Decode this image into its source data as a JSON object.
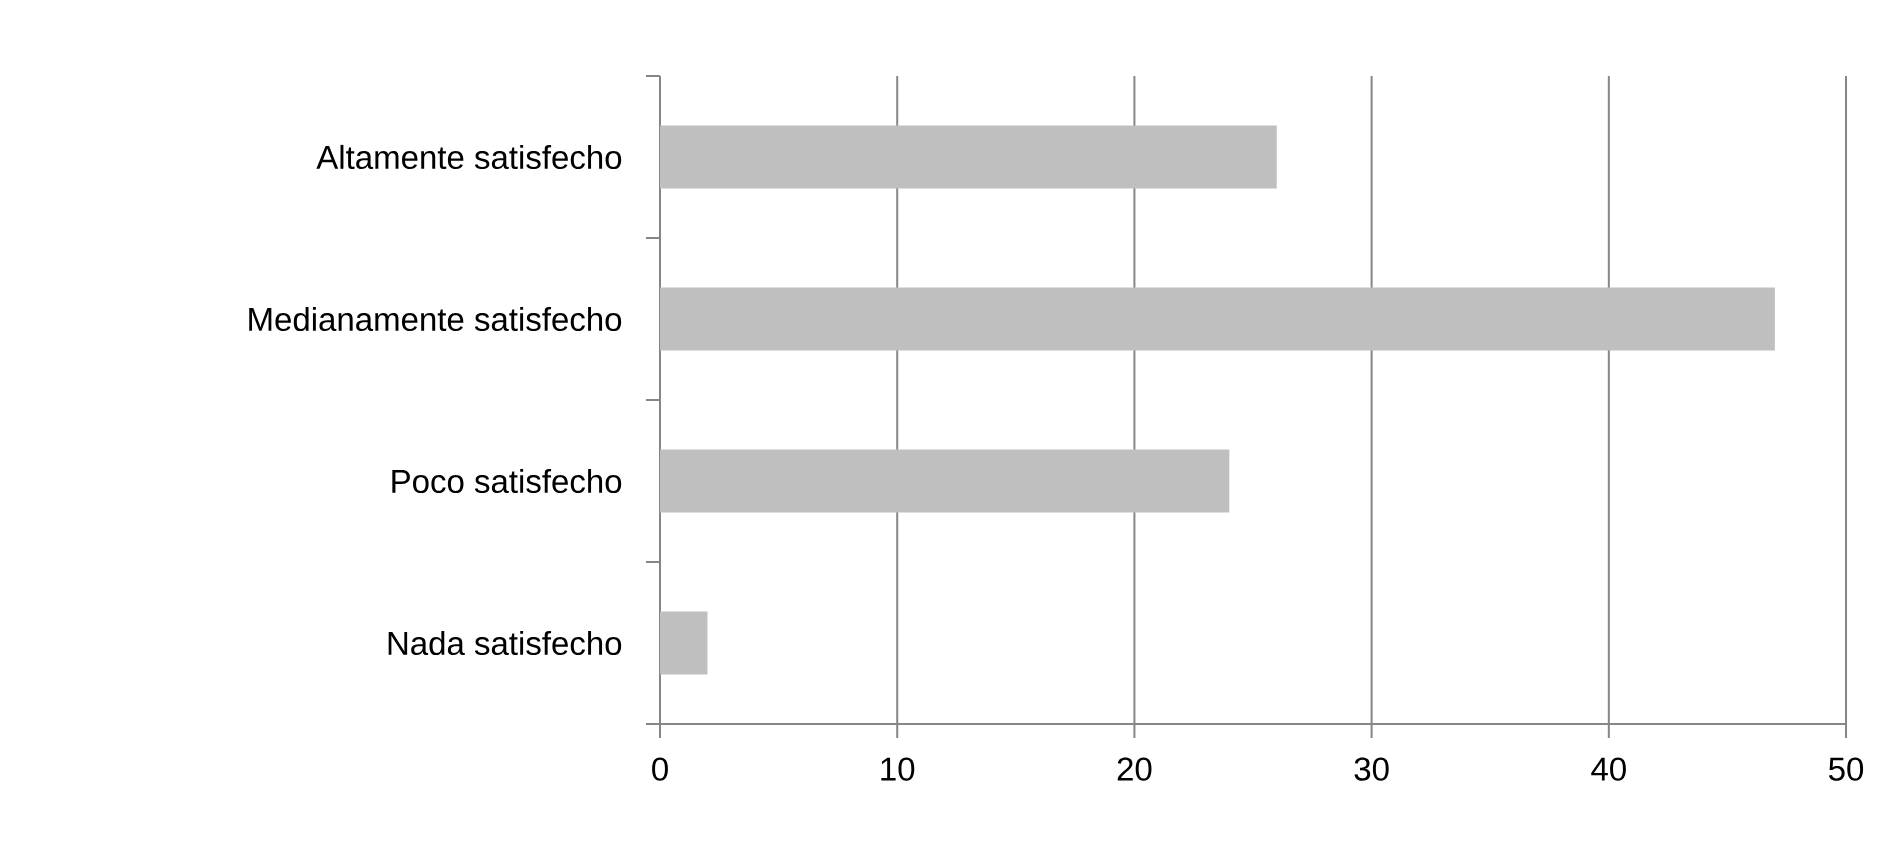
{
  "chart_data": {
    "type": "bar",
    "orientation": "horizontal",
    "categories": [
      "Altamente satisfecho",
      "Medianamente satisfecho",
      "Poco satisfecho",
      "Nada satisfecho"
    ],
    "values": [
      26,
      47,
      24,
      2
    ],
    "color": "#bfbfbf",
    "xlim": [
      0,
      50
    ],
    "xticks": [
      0,
      10,
      20,
      30,
      40,
      50
    ],
    "grid": "x"
  }
}
